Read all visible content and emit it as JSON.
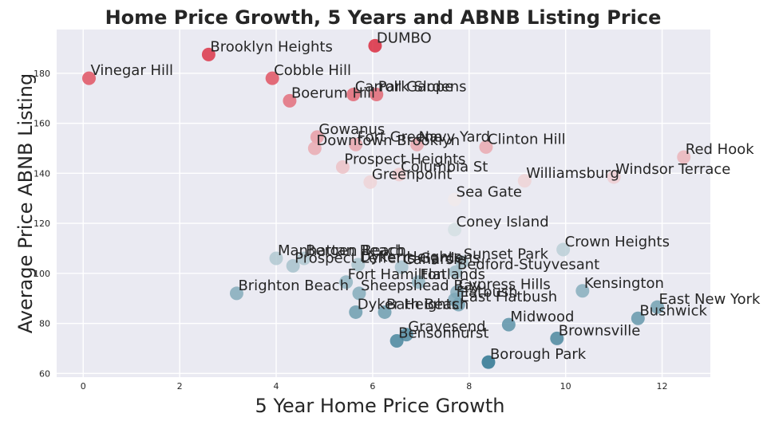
{
  "chart_data": {
    "type": "scatter",
    "title": "Home Price Growth, 5 Years and ABNB Listing Price",
    "xlabel": "5 Year Home Price Growth",
    "ylabel": "Average Price ABNB Listing",
    "xlim": [
      -0.55,
      13.0
    ],
    "ylim": [
      58.5,
      197.5
    ],
    "xticks": [
      "0",
      "2",
      "4",
      "6",
      "8",
      "10",
      "12"
    ],
    "yticks": [
      "60",
      "80",
      "100",
      "120",
      "140",
      "160",
      "180"
    ],
    "grid": true,
    "legend": "none",
    "color_scale": {
      "low": "#2e7590",
      "mid": "#f2f2f2",
      "high": "#db2b3f"
    },
    "points": [
      {
        "label": "DUMBO",
        "x": 6.05,
        "y": 191
      },
      {
        "label": "Brooklyn Heights",
        "x": 2.6,
        "y": 187.5
      },
      {
        "label": "Vinegar Hill",
        "x": 0.12,
        "y": 178
      },
      {
        "label": "Cobble Hill",
        "x": 3.92,
        "y": 178
      },
      {
        "label": "Boerum Hill",
        "x": 4.28,
        "y": 169
      },
      {
        "label": "Carroll Gardens",
        "x": 5.6,
        "y": 171.5
      },
      {
        "label": "Park Slope",
        "x": 6.08,
        "y": 171.5
      },
      {
        "label": "Gowanus",
        "x": 4.85,
        "y": 154.5
      },
      {
        "label": "Fort Greene",
        "x": 5.65,
        "y": 151.5
      },
      {
        "label": "Navy Yard",
        "x": 6.92,
        "y": 151.5
      },
      {
        "label": "Downtown Brooklyn",
        "x": 4.8,
        "y": 150
      },
      {
        "label": "Clinton Hill",
        "x": 8.35,
        "y": 150.5
      },
      {
        "label": "Red Hook",
        "x": 12.45,
        "y": 146.5
      },
      {
        "label": "Windsor Terrace",
        "x": 11.0,
        "y": 138.5
      },
      {
        "label": "Prospect Heights",
        "x": 5.38,
        "y": 142.5
      },
      {
        "label": "Columbia St",
        "x": 6.55,
        "y": 139.5
      },
      {
        "label": "Williamsburg",
        "x": 9.15,
        "y": 137
      },
      {
        "label": "Greenpoint",
        "x": 5.95,
        "y": 136.5
      },
      {
        "label": "Sea Gate",
        "x": 7.7,
        "y": 129.5
      },
      {
        "label": "Coney Island",
        "x": 7.7,
        "y": 117.5
      },
      {
        "label": "Crown Heights",
        "x": 9.95,
        "y": 109.5
      },
      {
        "label": "Manhattan Beach",
        "x": 4.0,
        "y": 106
      },
      {
        "label": "Bergen Beach",
        "x": 4.58,
        "y": 106
      },
      {
        "label": "Prospect Lefferts Gardens",
        "x": 4.35,
        "y": 103
      },
      {
        "label": "Sunset Park",
        "x": 7.85,
        "y": 104.5
      },
      {
        "label": "Dyker Heights",
        "x": 5.7,
        "y": 103.5
      },
      {
        "label": "Canarsie",
        "x": 6.6,
        "y": 102.5
      },
      {
        "label": "Bedford-Stuyvesant",
        "x": 7.72,
        "y": 100.5
      },
      {
        "label": "Fort Hamilton",
        "x": 5.45,
        "y": 96.5
      },
      {
        "label": "Flatlands",
        "x": 6.95,
        "y": 96.5
      },
      {
        "label": "Brighton Beach",
        "x": 3.18,
        "y": 92
      },
      {
        "label": "Sheepshead Bay",
        "x": 5.72,
        "y": 92
      },
      {
        "label": "Cypress Hills",
        "x": 7.75,
        "y": 92.5
      },
      {
        "label": "Kensington",
        "x": 10.35,
        "y": 93
      },
      {
        "label": "Flatbush",
        "x": 7.7,
        "y": 89.5
      },
      {
        "label": "East Flatbush",
        "x": 7.78,
        "y": 87.5
      },
      {
        "label": "East New York",
        "x": 11.9,
        "y": 86.5
      },
      {
        "label": "Dyker Heights",
        "x": 5.65,
        "y": 84.5
      },
      {
        "label": "Bath Beach",
        "x": 6.25,
        "y": 84.5
      },
      {
        "label": "Bushwick",
        "x": 11.5,
        "y": 82
      },
      {
        "label": "Midwood",
        "x": 8.82,
        "y": 79.5
      },
      {
        "label": "Gravesend",
        "x": 6.7,
        "y": 75.5
      },
      {
        "label": "Bensonhurst",
        "x": 6.5,
        "y": 73
      },
      {
        "label": "Brownsville",
        "x": 9.82,
        "y": 74
      },
      {
        "label": "Borough Park",
        "x": 8.4,
        "y": 64.5
      }
    ]
  }
}
